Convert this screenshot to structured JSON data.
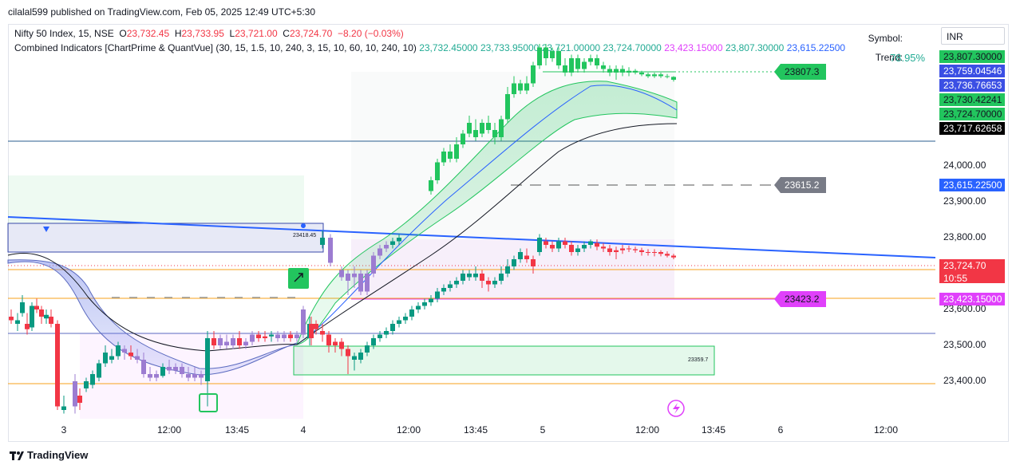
{
  "header": {
    "publisher": "cilalal599 published on TradingView.com, Feb 05, 2025 12:49 UTC+5:30"
  },
  "legend": {
    "symbol_line": "Nifty 50 Index, 15, NSE",
    "o_label": "O",
    "o_value": "23,732.45",
    "h_label": "H",
    "h_value": "23,733.95",
    "l_label": "L",
    "l_value": "23,721.00",
    "c_label": "C",
    "c_value": "23,724.70",
    "change": "−8.20 (−0.03%)",
    "indicator_name": "Combined Indicators [ChartPrime & QuantVue] (30, 15, 1.5, 10, 240, 3, 15, 10, 60, 10, 240, 10)",
    "indicator_values": [
      {
        "text": "23,732.45000",
        "color": "#22ab94"
      },
      {
        "text": "23,733.95000",
        "color": "#22ab94"
      },
      {
        "text": "23,721.00000",
        "color": "#22ab94"
      },
      {
        "text": "23,724.70000",
        "color": "#22ab94"
      },
      {
        "text": "23,423.15000",
        "color": "#e040fb"
      },
      {
        "text": "23,807.30000",
        "color": "#22ab94"
      },
      {
        "text": "23,615.22500",
        "color": "#2962ff"
      }
    ]
  },
  "side_panel": {
    "symbol_label": "Symbol:",
    "trend_label": "Trend:",
    "trend_value": "78.95%",
    "currency": "INR"
  },
  "price_tags": [
    {
      "text": "23,807.30000",
      "bg": "#22c55e",
      "fg": "#131722",
      "price": 23807.3
    },
    {
      "text": "23,759.04546",
      "bg": "#3b4fe4",
      "fg": "#ffffff",
      "price": 23770
    },
    {
      "text": "23,736.76653",
      "bg": "#3b4fe4",
      "fg": "#ffffff",
      "price": 23745
    },
    {
      "text": "23,730.42241",
      "bg": "#22c55e",
      "fg": "#131722",
      "price": 23720
    },
    {
      "text": "23,724.70000",
      "bg": "#22c55e",
      "fg": "#131722",
      "price": 23697
    },
    {
      "text": "23,717.62658",
      "bg": "#000000",
      "fg": "#ffffff",
      "price": 23672
    }
  ],
  "price_tag_mid": {
    "text": "23,615.22500",
    "bg": "#2962ff",
    "fg": "#ffffff"
  },
  "price_tag_last": {
    "text": "23,724.70",
    "countdown": "10:55",
    "bg": "#f23645"
  },
  "price_tag_low": {
    "text": "23,423.15000",
    "bg": "#e040fb"
  },
  "annotations": {
    "high_label": "23807.3",
    "mid_label": "23615.2",
    "low_label": "23423.2",
    "box_label_1": "23418.45",
    "box_label_2": "23359.7"
  },
  "axis": {
    "price_ticks": [
      "24,000.00",
      "23,900.00",
      "23,800.00",
      "23,700.00",
      "23,600.00",
      "23,500.00",
      "23,400.00"
    ],
    "time_ticks": [
      "3",
      "12:00",
      "13:45",
      "4",
      "12:00",
      "13:45",
      "5",
      "12:00",
      "13:45",
      "6",
      "12:00"
    ]
  },
  "footer": {
    "brand": "TradingView"
  },
  "colors": {
    "up": "#089981",
    "down": "#f23645",
    "trend_down": "#9c7cd1",
    "band_blue": "#2962ff",
    "band_green": "#22c55e",
    "magenta": "#e040fb",
    "orange": "#f7a21b"
  },
  "chart_data": {
    "type": "candlestick",
    "symbol": "Nifty 50 Index",
    "interval": "15",
    "exchange": "NSE",
    "ylim": [
      23300,
      24200
    ],
    "sessions": [
      "3",
      "4",
      "5"
    ],
    "ohlc_approx": [
      {
        "session": "3",
        "open": 23560,
        "high": 23600,
        "low": 23300,
        "close": 23330
      },
      {
        "session": "4",
        "open": 23530,
        "high": 23860,
        "low": 23450,
        "close": 23780
      },
      {
        "session": "5",
        "open": 23790,
        "high": 23807.3,
        "low": 23700,
        "close": 23724.7
      }
    ],
    "levels": {
      "resistance": 23807.3,
      "mid": 23615.2,
      "support": 23423.2
    }
  }
}
